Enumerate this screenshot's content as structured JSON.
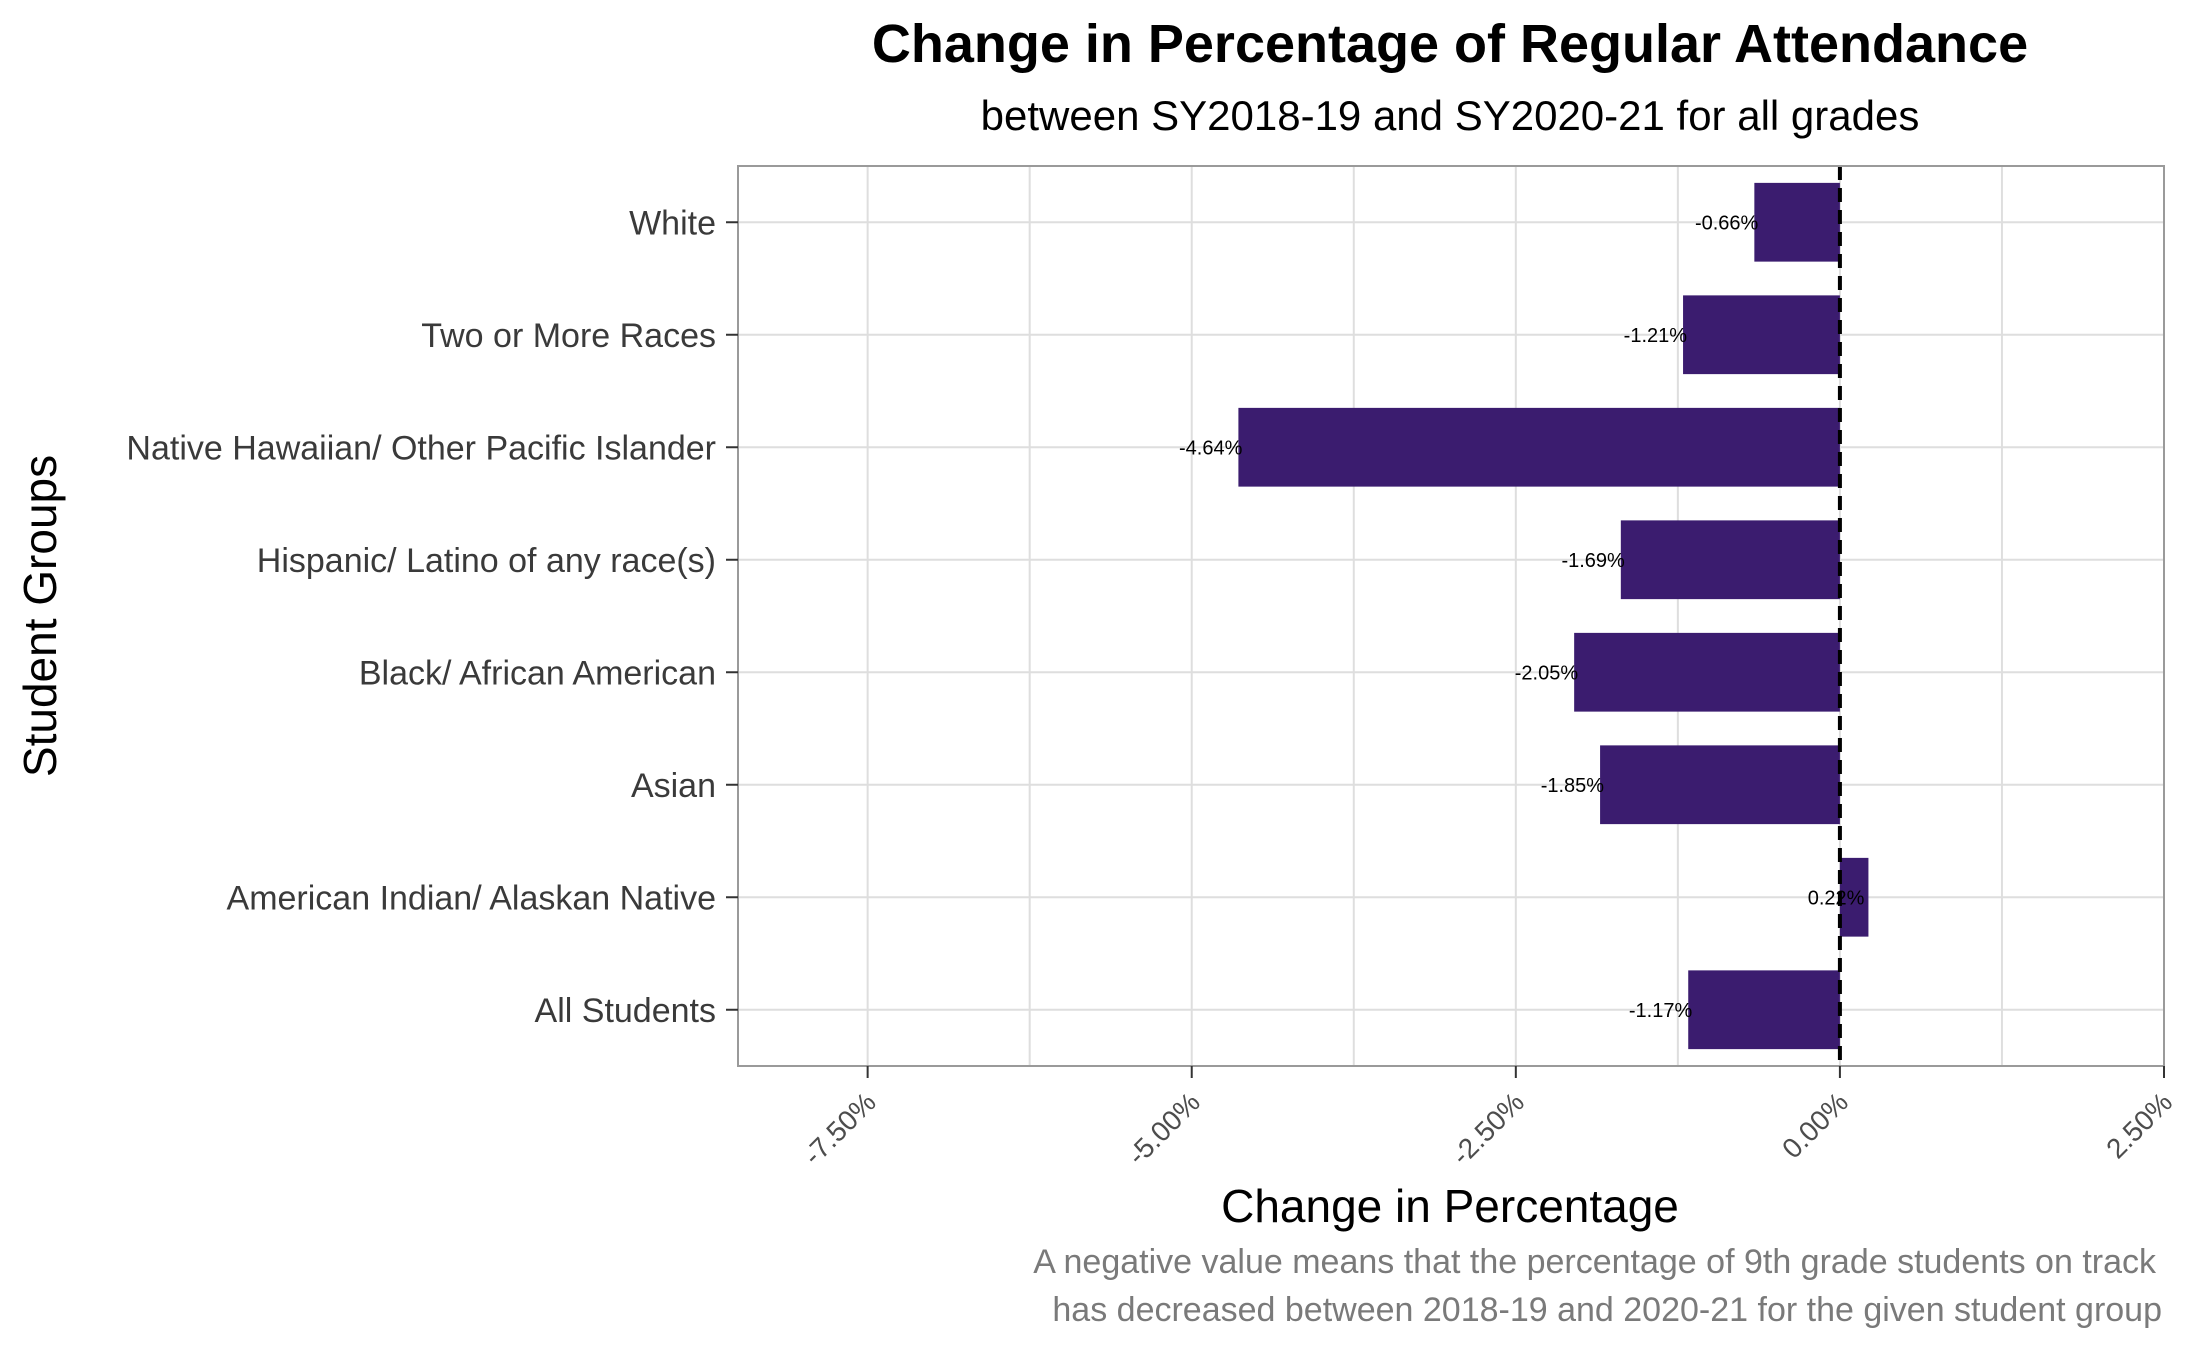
{
  "chart_data": {
    "type": "bar",
    "orientation": "horizontal",
    "title": "Change in Percentage of Regular Attendance",
    "subtitle": "between SY2018-19 and SY2020-21 for all grades",
    "xlabel": "Change in Percentage",
    "ylabel": "Student Groups",
    "caption_lines": [
      "A negative value means that the percentage of 9th grade students on track",
      "has decreased between 2018-19 and 2020-21 for the given student group"
    ],
    "categories": [
      "White",
      "Two or More Races",
      "Native Hawaiian/ Other Pacific Islander",
      "Hispanic/ Latino of any race(s)",
      "Black/ African American",
      "Asian",
      "American Indian/ Alaskan Native",
      "All Students"
    ],
    "values": [
      -0.66,
      -1.21,
      -4.64,
      -1.69,
      -2.05,
      -1.85,
      0.22,
      -1.17
    ],
    "data_labels": [
      "-0.66%",
      "-1.21%",
      "-4.64%",
      "-1.69%",
      "-2.05%",
      "-1.85%",
      "0.22%",
      "-1.17%"
    ],
    "xlim": [
      -8.5,
      2.5
    ],
    "xticks": [
      -7.5,
      -5.0,
      -2.5,
      0.0,
      2.5
    ],
    "xtick_labels": [
      "-7.50%",
      "-5.00%",
      "-2.50%",
      "0.00%",
      "2.50%"
    ],
    "reference_line": 0,
    "bar_color": "#3b1c6f",
    "grid": true,
    "legend": "none"
  }
}
